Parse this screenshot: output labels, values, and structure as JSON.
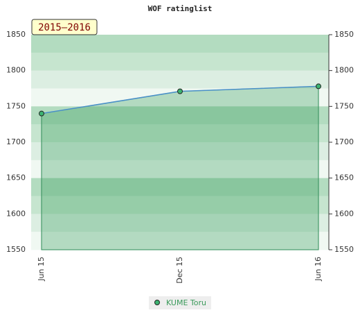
{
  "chart_data": {
    "type": "line",
    "title": "WOF ratinglist",
    "annotation": "2015–2016",
    "categories": [
      "Jun 15",
      "Dec 15",
      "Jun 16"
    ],
    "series": [
      {
        "name": "KUME Toru",
        "color": "#4a90c8",
        "values": [
          1740,
          1771,
          1778
        ]
      }
    ],
    "ylim": [
      1550,
      1850
    ],
    "yticks": [
      1550,
      1600,
      1650,
      1700,
      1750,
      1800,
      1850
    ],
    "grid": false
  }
}
